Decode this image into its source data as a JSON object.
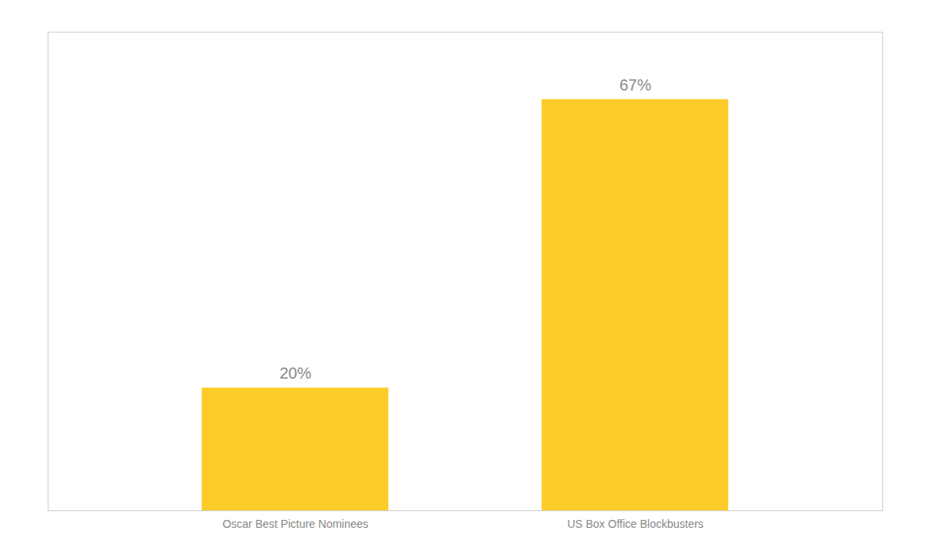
{
  "chart_data": {
    "type": "bar",
    "categories": [
      "Oscar Best Picture Nominees",
      "US Box Office Blockbusters"
    ],
    "values": [
      20,
      67
    ],
    "value_labels": [
      "20%",
      "67%"
    ],
    "color": "#FDCC2A",
    "ylim": [
      0,
      78
    ],
    "data_labels": true,
    "tick_labels": "x"
  }
}
